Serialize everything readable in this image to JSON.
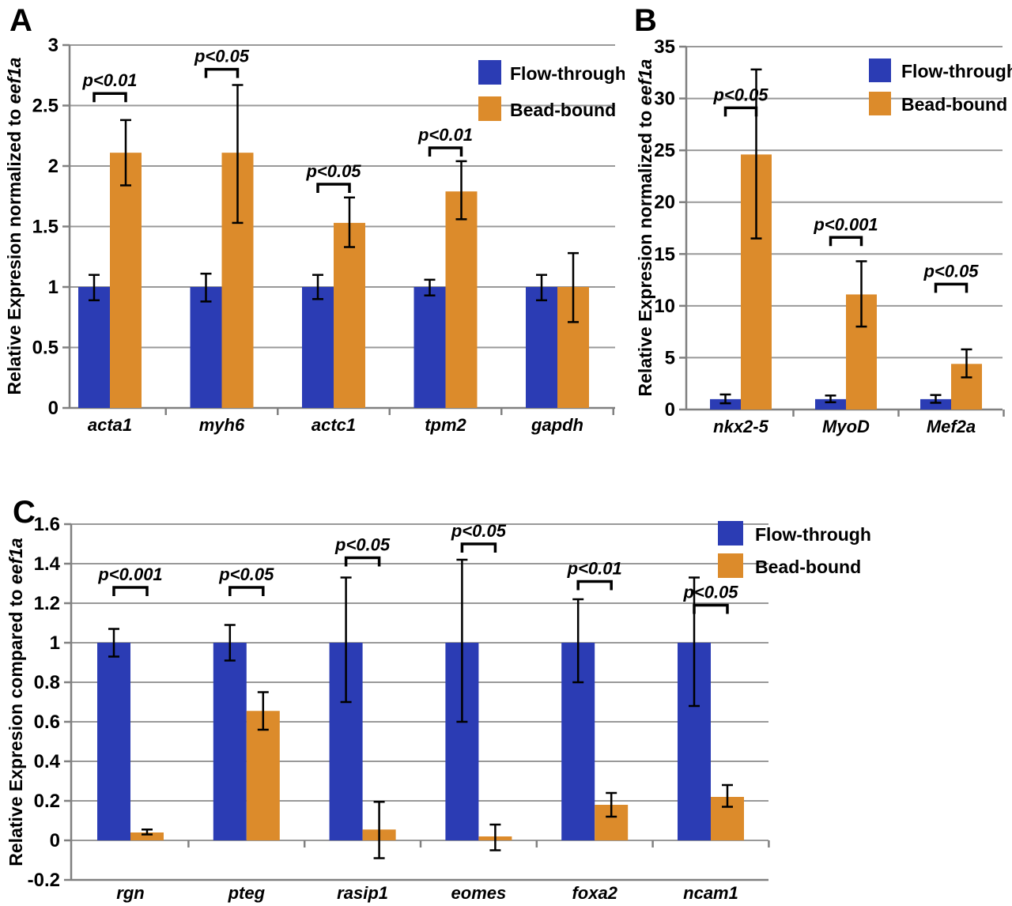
{
  "colors": {
    "flow_through": "#2B3CB4",
    "bead_bound": "#DC8B2B",
    "gridline": "#999999",
    "axis": "#808080",
    "error_bar": "#000000",
    "bracket": "#000000",
    "text": "#000000",
    "background": "#ffffff"
  },
  "legend": {
    "items": [
      {
        "key": "flow_through",
        "label": "Flow-through"
      },
      {
        "key": "bead_bound",
        "label": "Bead-bound"
      }
    ]
  },
  "chart_data": [
    {
      "panel": "A",
      "type": "bar",
      "ylabel_main": "Relative Expresion normalized to ",
      "ylabel_gene": "eef1a",
      "ylim": [
        0,
        3
      ],
      "grid": true,
      "legend_position": "top-right",
      "yticks": [
        {
          "v": 0,
          "label": "0"
        },
        {
          "v": 0.5,
          "label": "0.5"
        },
        {
          "v": 1,
          "label": "1"
        },
        {
          "v": 1.5,
          "label": "1.5"
        },
        {
          "v": 2,
          "label": "2"
        },
        {
          "v": 2.5,
          "label": "2.5"
        },
        {
          "v": 3,
          "label": "3"
        }
      ],
      "groups": [
        {
          "gene": "acta1",
          "flow_through": {
            "value": 1.0,
            "err": [
              0.89,
              1.1
            ]
          },
          "bead_bound": {
            "value": 2.11,
            "err": [
              1.84,
              2.38
            ]
          },
          "sig": {
            "label": "p<0.01",
            "y": 2.6
          }
        },
        {
          "gene": "myh6",
          "flow_through": {
            "value": 1.0,
            "err": [
              0.88,
              1.11
            ]
          },
          "bead_bound": {
            "value": 2.11,
            "err": [
              1.53,
              2.67
            ]
          },
          "sig": {
            "label": "p<0.05",
            "y": 2.8
          }
        },
        {
          "gene": "actc1",
          "flow_through": {
            "value": 1.0,
            "err": [
              0.9,
              1.1
            ]
          },
          "bead_bound": {
            "value": 1.53,
            "err": [
              1.33,
              1.74
            ]
          },
          "sig": {
            "label": "p<0.05",
            "y": 1.85
          }
        },
        {
          "gene": "tpm2",
          "flow_through": {
            "value": 1.0,
            "err": [
              0.93,
              1.06
            ]
          },
          "bead_bound": {
            "value": 1.79,
            "err": [
              1.56,
              2.04
            ]
          },
          "sig": {
            "label": "p<0.01",
            "y": 2.15
          }
        },
        {
          "gene": "gapdh",
          "flow_through": {
            "value": 1.0,
            "err": [
              0.89,
              1.1
            ]
          },
          "bead_bound": {
            "value": 1.0,
            "err": [
              0.71,
              1.28
            ]
          },
          "sig": null
        }
      ]
    },
    {
      "panel": "B",
      "type": "bar",
      "ylabel_main": "Relative Expresion normalized to ",
      "ylabel_gene": "eef1a",
      "ylim": [
        0,
        35
      ],
      "grid": true,
      "legend_position": "top-right",
      "yticks": [
        {
          "v": 0,
          "label": "0"
        },
        {
          "v": 5,
          "label": "5"
        },
        {
          "v": 10,
          "label": "10"
        },
        {
          "v": 15,
          "label": "15"
        },
        {
          "v": 20,
          "label": "20"
        },
        {
          "v": 25,
          "label": "25"
        },
        {
          "v": 30,
          "label": "30"
        },
        {
          "v": 35,
          "label": "35"
        }
      ],
      "groups": [
        {
          "gene": "nkx2-5",
          "flow_through": {
            "value": 1.0,
            "err": [
              0.6,
              1.45
            ]
          },
          "bead_bound": {
            "value": 24.6,
            "err": [
              16.5,
              32.8
            ]
          },
          "sig": {
            "label": "p<0.05",
            "y": 29.1
          }
        },
        {
          "gene": "MyoD",
          "flow_through": {
            "value": 1.0,
            "err": [
              0.7,
              1.35
            ]
          },
          "bead_bound": {
            "value": 11.1,
            "err": [
              8.0,
              14.3
            ]
          },
          "sig": {
            "label": "p<0.001",
            "y": 16.6
          }
        },
        {
          "gene": "Mef2a",
          "flow_through": {
            "value": 1.0,
            "err": [
              0.65,
              1.4
            ]
          },
          "bead_bound": {
            "value": 4.4,
            "err": [
              3.1,
              5.8
            ]
          },
          "sig": {
            "label": "p<0.05",
            "y": 12.1
          }
        }
      ]
    },
    {
      "panel": "C",
      "type": "bar",
      "ylabel_main": "Relative Expresion compared to ",
      "ylabel_gene": "eef1a",
      "ylim": [
        -0.2,
        1.6
      ],
      "grid": true,
      "legend_position": "top-right",
      "yticks": [
        {
          "v": -0.2,
          "label": "-0.2"
        },
        {
          "v": 0,
          "label": "0"
        },
        {
          "v": 0.2,
          "label": "0.2"
        },
        {
          "v": 0.4,
          "label": "0.4"
        },
        {
          "v": 0.6,
          "label": "0.6"
        },
        {
          "v": 0.8,
          "label": "0.8"
        },
        {
          "v": 1,
          "label": "1"
        },
        {
          "v": 1.2,
          "label": "1.2"
        },
        {
          "v": 1.4,
          "label": "1.4"
        },
        {
          "v": 1.6,
          "label": "1.6"
        }
      ],
      "groups": [
        {
          "gene": "rgn",
          "flow_through": {
            "value": 1.0,
            "err": [
              0.93,
              1.07
            ]
          },
          "bead_bound": {
            "value": 0.04,
            "err": [
              0.03,
              0.055
            ]
          },
          "sig": {
            "label": "p<0.001",
            "y": 1.28
          }
        },
        {
          "gene": "pteg",
          "flow_through": {
            "value": 1.0,
            "err": [
              0.91,
              1.09
            ]
          },
          "bead_bound": {
            "value": 0.655,
            "err": [
              0.56,
              0.75
            ]
          },
          "sig": {
            "label": "p<0.05",
            "y": 1.28
          }
        },
        {
          "gene": "rasip1",
          "flow_through": {
            "value": 1.0,
            "err": [
              0.7,
              1.33
            ]
          },
          "bead_bound": {
            "value": 0.055,
            "err": [
              -0.09,
              0.195
            ]
          },
          "sig": {
            "label": "p<0.05",
            "y": 1.43
          }
        },
        {
          "gene": "eomes",
          "flow_through": {
            "value": 1.0,
            "err": [
              0.6,
              1.42
            ]
          },
          "bead_bound": {
            "value": 0.02,
            "err": [
              -0.05,
              0.08
            ]
          },
          "sig": {
            "label": "p<0.05",
            "y": 1.5
          }
        },
        {
          "gene": "foxa2",
          "flow_through": {
            "value": 1.0,
            "err": [
              0.8,
              1.22
            ]
          },
          "bead_bound": {
            "value": 0.18,
            "err": [
              0.12,
              0.24
            ]
          },
          "sig": {
            "label": "p<0.01",
            "y": 1.31
          }
        },
        {
          "gene": "ncam1",
          "flow_through": {
            "value": 1.0,
            "err": [
              0.68,
              1.33
            ]
          },
          "bead_bound": {
            "value": 0.22,
            "err": [
              0.17,
              0.28
            ]
          },
          "sig": {
            "label": "p<0.05",
            "y": 1.19
          }
        }
      ]
    }
  ]
}
